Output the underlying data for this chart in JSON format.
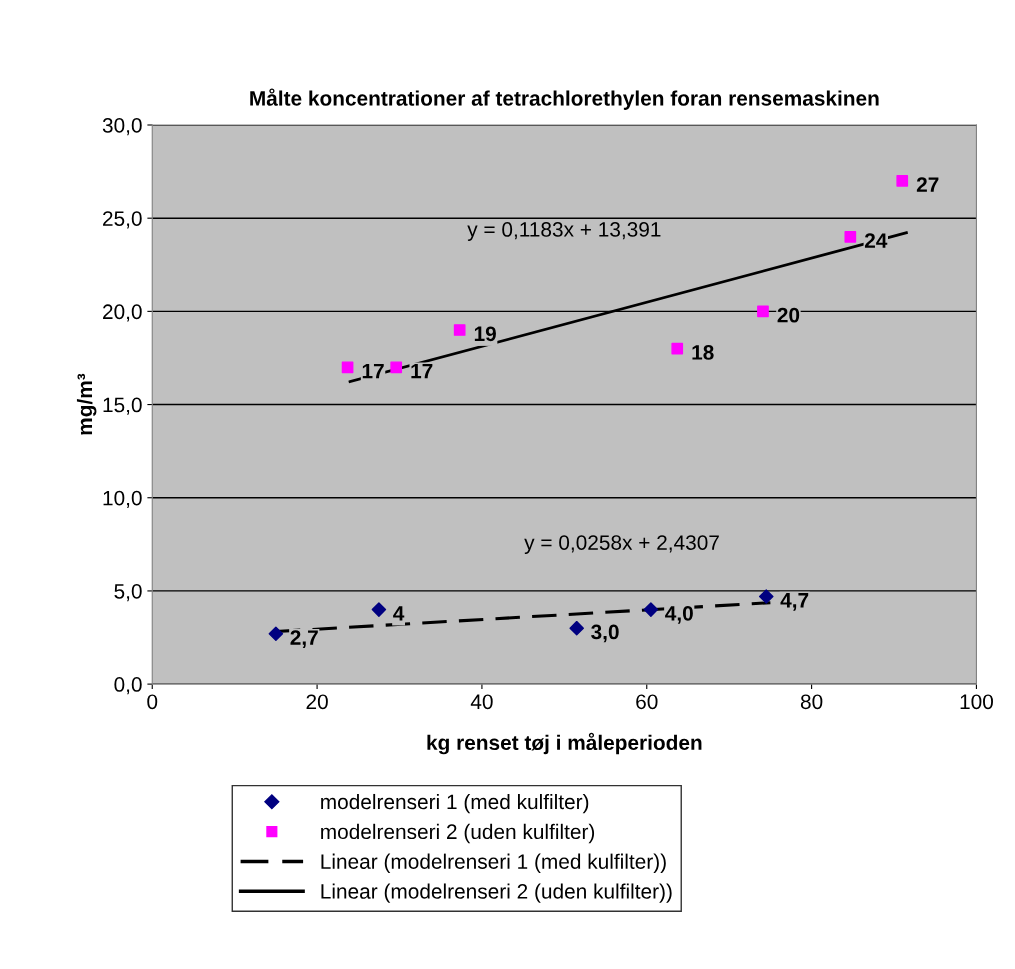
{
  "chart_data": {
    "type": "scatter",
    "title": "Målte koncentrationer af tetrachlorethylen foran rensemaskinen",
    "xlabel": "kg renset tøj i måleperioden",
    "ylabel": "mg/m³",
    "xlim": [
      0,
      100
    ],
    "xticks": [
      0,
      20,
      40,
      60,
      80,
      100
    ],
    "ylim": [
      0,
      30
    ],
    "yticks": [
      {
        "value": 0,
        "label": "0,0"
      },
      {
        "value": 5,
        "label": "5,0"
      },
      {
        "value": 10,
        "label": "10,0"
      },
      {
        "value": 15,
        "label": "15,0"
      },
      {
        "value": 20,
        "label": "20,0"
      },
      {
        "value": 25,
        "label": "25,0"
      },
      {
        "value": 30,
        "label": "30,0"
      }
    ],
    "grid": "y",
    "legend": "bottom",
    "series": [
      {
        "name": "modelrenseri 1 (med kulfilter)",
        "marker": "diamond",
        "color": "#000080",
        "x": [
          15,
          27.5,
          51.5,
          60.5,
          74.5
        ],
        "values": [
          2.7,
          4,
          3.0,
          4.0,
          4.7
        ],
        "value_labels": [
          "2,7",
          "4",
          "3,0",
          "4,0",
          "4,7"
        ]
      },
      {
        "name": "modelrenseri 2 (uden kulfilter)",
        "marker": "square",
        "color": "#ff00ff",
        "x": [
          23.7,
          29.6,
          37.3,
          63.7,
          74.1,
          84.7,
          91
        ],
        "values": [
          17,
          17,
          19,
          18,
          20,
          24,
          27
        ],
        "value_labels": [
          "17",
          "17",
          "19",
          "18",
          "20",
          "24",
          "27"
        ]
      },
      {
        "name": "Linear (modelrenseri 1 (med kulfilter))",
        "type": "line",
        "marker": "none",
        "line_style": "dashed",
        "color": "#000000",
        "x": [
          15,
          75
        ],
        "values": [
          2.82,
          4.37
        ]
      },
      {
        "name": "Linear (modelrenseri 2 (uden kulfilter))",
        "type": "line",
        "marker": "none",
        "line_style": "solid",
        "color": "#000000",
        "x": [
          24,
          91.5
        ],
        "values": [
          16.23,
          24.22
        ]
      }
    ],
    "annotations": [
      "y = 0,1183x + 13,391",
      "y = 0,0258x + 2,4307"
    ]
  }
}
